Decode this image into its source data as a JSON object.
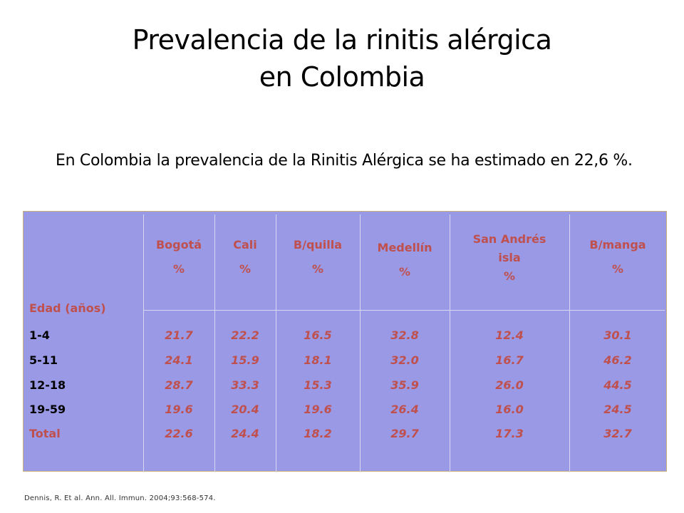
{
  "title": {
    "line1": "Prevalencia de la rinitis alérgica",
    "line2": "en Colombia"
  },
  "intro": "En Colombia la prevalencia de la Rinitis Alérgica se ha estimado en 22,6 %.",
  "table": {
    "age_header": "Edad (años)",
    "columns": [
      {
        "name": "Bogotá",
        "unit": "%"
      },
      {
        "name": "Cali",
        "unit": "%"
      },
      {
        "name": "B/quilla",
        "unit": "%"
      },
      {
        "name": "Medellín",
        "unit": "%"
      },
      {
        "name": "San Andrés isla",
        "unit": "%"
      },
      {
        "name": "B/manga",
        "unit": "%"
      }
    ],
    "rows": [
      {
        "label": "1-4",
        "values": [
          "21.7",
          "22.2",
          "16.5",
          "32.8",
          "12.4",
          "30.1"
        ]
      },
      {
        "label": "5-11",
        "values": [
          "24.1",
          "15.9",
          "18.1",
          "32.0",
          "16.7",
          "46.2"
        ]
      },
      {
        "label": "12-18",
        "values": [
          "28.7",
          "33.3",
          "15.3",
          "35.9",
          "26.0",
          "44.5"
        ]
      },
      {
        "label": "19-59",
        "values": [
          "19.6",
          "20.4",
          "19.6",
          "26.4",
          "16.0",
          "24.5"
        ]
      },
      {
        "label": "Total",
        "values": [
          "22.6",
          "24.4",
          "18.2",
          "29.7",
          "17.3",
          "32.7"
        ]
      }
    ]
  },
  "footnote": "Dennis, R. Et al. Ann. All. Immun. 2004;93:568-574.",
  "colors": {
    "panel": "#9999e6",
    "accent": "#c0504d",
    "divider": "#d8d8f4"
  }
}
